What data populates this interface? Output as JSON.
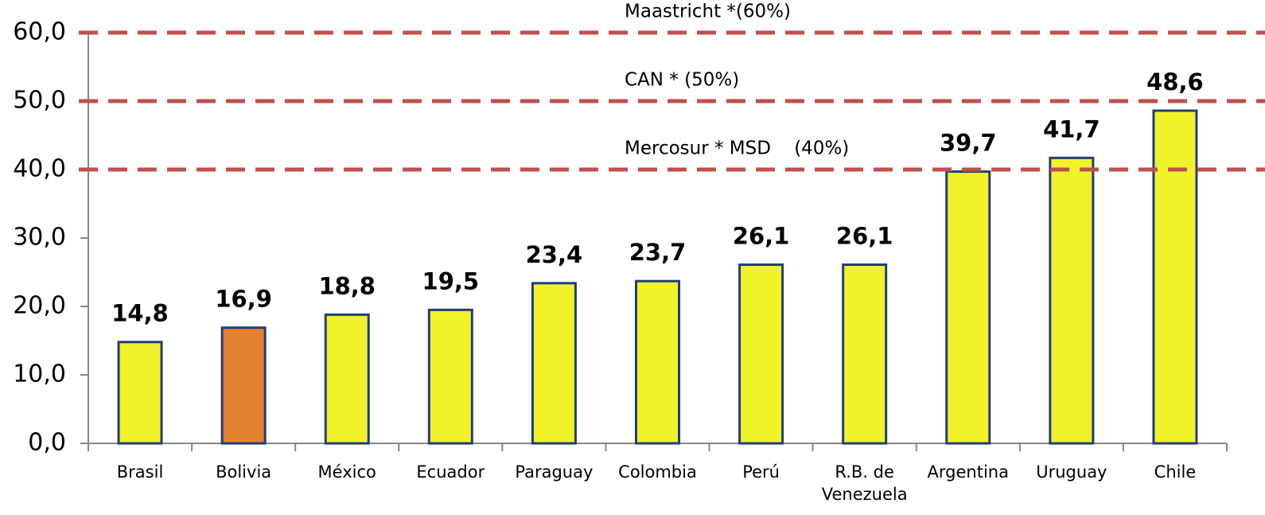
{
  "chart_data": {
    "type": "bar",
    "categories": [
      "Brasil",
      "Bolivia",
      "México",
      "Ecuador",
      "Paraguay",
      "Colombia",
      "Perú",
      "R.B. de Venezuela",
      "Argentina",
      "Uruguay",
      "Chile"
    ],
    "values": [
      14.8,
      16.9,
      18.8,
      19.5,
      23.4,
      23.7,
      26.1,
      26.1,
      39.7,
      41.7,
      48.6
    ],
    "value_labels": [
      "14,8",
      "16,9",
      "18,8",
      "19,5",
      "23,4",
      "23,7",
      "26,1",
      "26,1",
      "39,7",
      "41,7",
      "48,6"
    ],
    "colors": [
      "#f2f229",
      "#e5822f",
      "#f2f229",
      "#f2f229",
      "#f2f229",
      "#f2f229",
      "#f2f229",
      "#f2f229",
      "#f2f229",
      "#f2f229",
      "#f2f229"
    ],
    "ylim": [
      0,
      60
    ],
    "yticks": [
      {
        "value": 0,
        "label": "0,0"
      },
      {
        "value": 10,
        "label": "10,0"
      },
      {
        "value": 20,
        "label": "20,0"
      },
      {
        "value": 30,
        "label": "30,0"
      },
      {
        "value": 40,
        "label": "40,0"
      },
      {
        "value": 50,
        "label": "50,0"
      },
      {
        "value": 60,
        "label": "60,0"
      }
    ],
    "reference_lines": [
      {
        "value": 60,
        "label": "Maastricht *(60%)"
      },
      {
        "value": 50,
        "label": "CAN * (50%)"
      },
      {
        "value": 40,
        "label": "Mercosur * MSD    (40%)"
      }
    ],
    "reference_color": "#c0504d"
  }
}
